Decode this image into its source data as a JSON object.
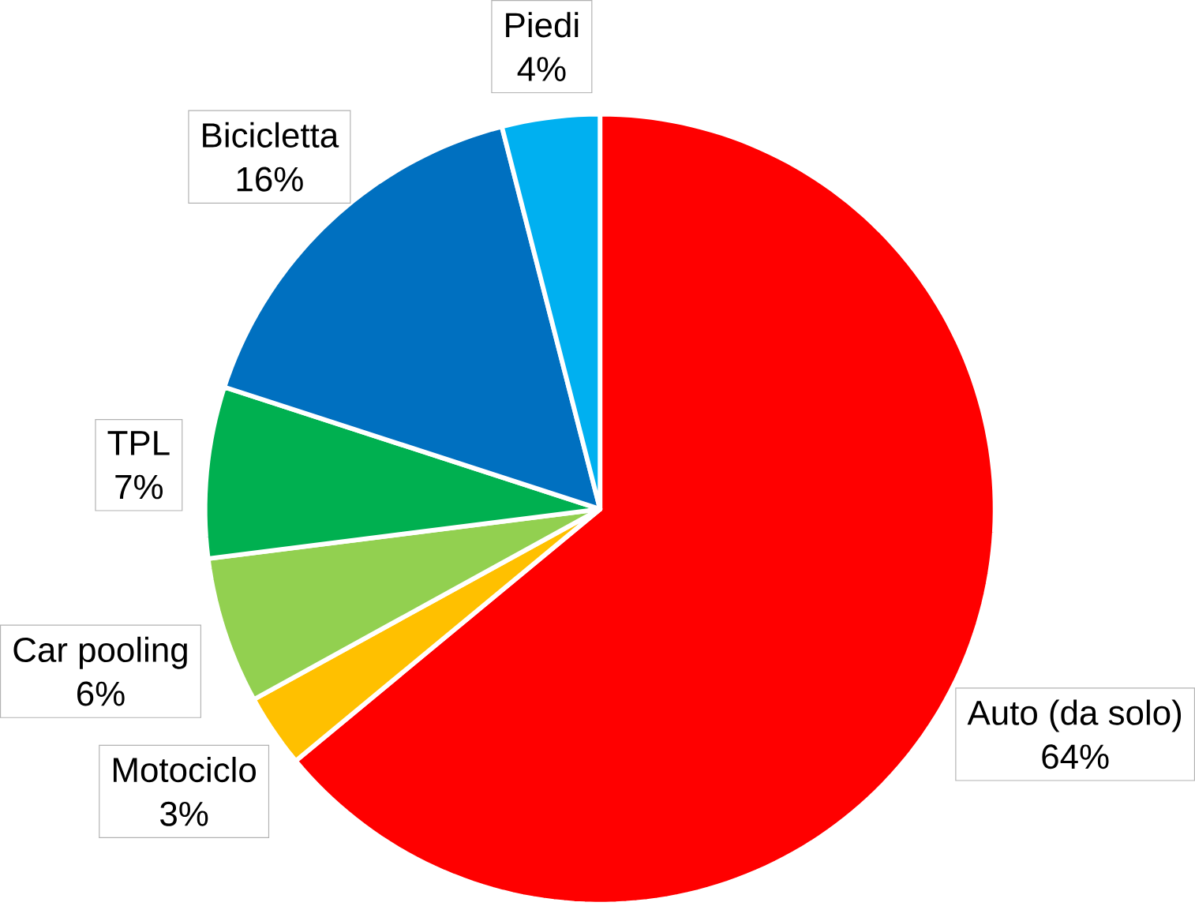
{
  "chart_data": {
    "type": "pie",
    "categories": [
      "Auto (da solo)",
      "Motociclo",
      "Car pooling",
      "TPL",
      "Bicicletta",
      "Piedi"
    ],
    "values": [
      64,
      3,
      6,
      7,
      16,
      4
    ],
    "value_labels": [
      "64%",
      "3%",
      "6%",
      "7%",
      "16%",
      "4%"
    ],
    "colors": [
      "#ff0000",
      "#ffc000",
      "#92d050",
      "#00b050",
      "#0070c0",
      "#00b0f0"
    ]
  }
}
